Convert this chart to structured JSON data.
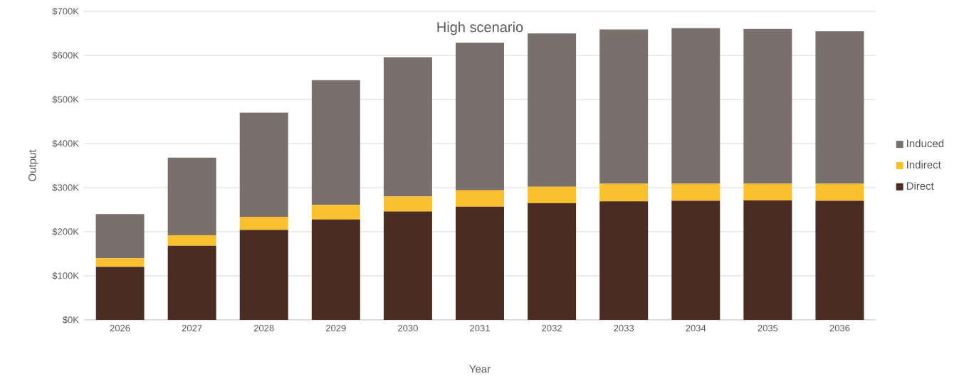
{
  "chart_data": {
    "type": "bar",
    "stacked": true,
    "title": "High scenario",
    "xlabel": "Year",
    "ylabel": "Output",
    "categories": [
      "2026",
      "2027",
      "2028",
      "2029",
      "2030",
      "2031",
      "2032",
      "2033",
      "2034",
      "2035",
      "2036"
    ],
    "series": [
      {
        "name": "Direct",
        "color": "#4a2c22",
        "values": [
          120,
          168,
          204,
          228,
          246,
          257,
          265,
          269,
          270,
          271,
          270
        ]
      },
      {
        "name": "Indirect",
        "color": "#fbc02d",
        "values": [
          20,
          24,
          30,
          33,
          34,
          37,
          37,
          40,
          39,
          38,
          39
        ]
      },
      {
        "name": "Induced",
        "color": "#7b6f6b",
        "values": [
          100,
          176,
          236,
          283,
          316,
          335,
          348,
          350,
          353,
          351,
          346
        ]
      }
    ],
    "ylim": [
      0,
      700
    ],
    "yticks": [
      {
        "value": 0,
        "label": "$0K"
      },
      {
        "value": 100,
        "label": "$100K"
      },
      {
        "value": 200,
        "label": "$200K"
      },
      {
        "value": 300,
        "label": "$300K"
      },
      {
        "value": 400,
        "label": "$400K"
      },
      {
        "value": 500,
        "label": "$500K"
      },
      {
        "value": 600,
        "label": "$600K"
      },
      {
        "value": 700,
        "label": "$700K"
      }
    ],
    "grid": "y",
    "legend": "right"
  }
}
